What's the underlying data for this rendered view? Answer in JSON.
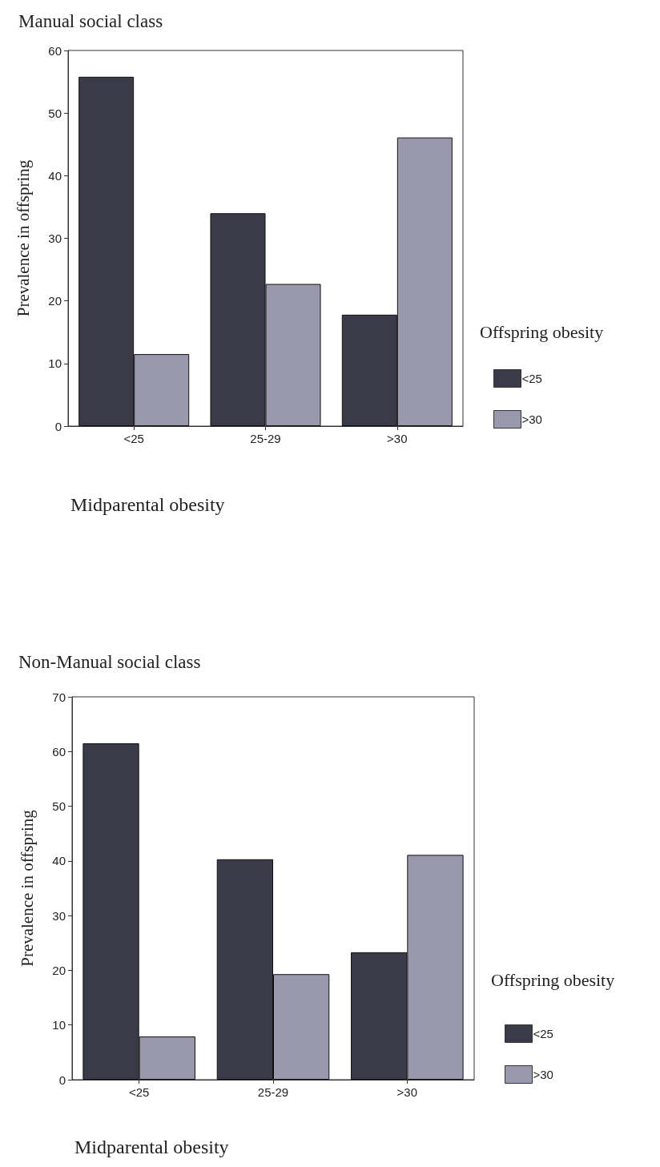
{
  "chart_data": [
    {
      "type": "bar",
      "title": "Manual social class",
      "xlabel": "Midparental obesity",
      "ylabel": "Prevalence in offspring",
      "legend_title": "Offspring obesity",
      "categories": [
        "<25",
        "25-29",
        ">30"
      ],
      "series": [
        {
          "name": "<25",
          "color": "#3b3a48",
          "values": [
            55.8,
            34.0,
            17.8
          ]
        },
        {
          "name": ">30",
          "color": "#9a98ac",
          "values": [
            11.5,
            22.7,
            46.1
          ]
        }
      ],
      "ylim": [
        0,
        60
      ],
      "yticks": [
        0,
        10,
        20,
        30,
        40,
        50,
        60
      ],
      "grid": false,
      "legend": "right"
    },
    {
      "type": "bar",
      "title": "Non-Manual social class",
      "xlabel": "Midparental obesity",
      "ylabel": "Prevalence in offspring",
      "legend_title": "Offspring obesity",
      "categories": [
        "<25",
        "25-29",
        ">30"
      ],
      "series": [
        {
          "name": "<25",
          "color": "#3b3a48",
          "values": [
            61.5,
            40.3,
            23.3
          ]
        },
        {
          "name": ">30",
          "color": "#9a98ac",
          "values": [
            7.9,
            19.3,
            41.1
          ]
        }
      ],
      "ylim": [
        0,
        70
      ],
      "yticks": [
        0,
        10,
        20,
        30,
        40,
        50,
        60,
        70
      ],
      "grid": false,
      "legend": "right"
    }
  ]
}
